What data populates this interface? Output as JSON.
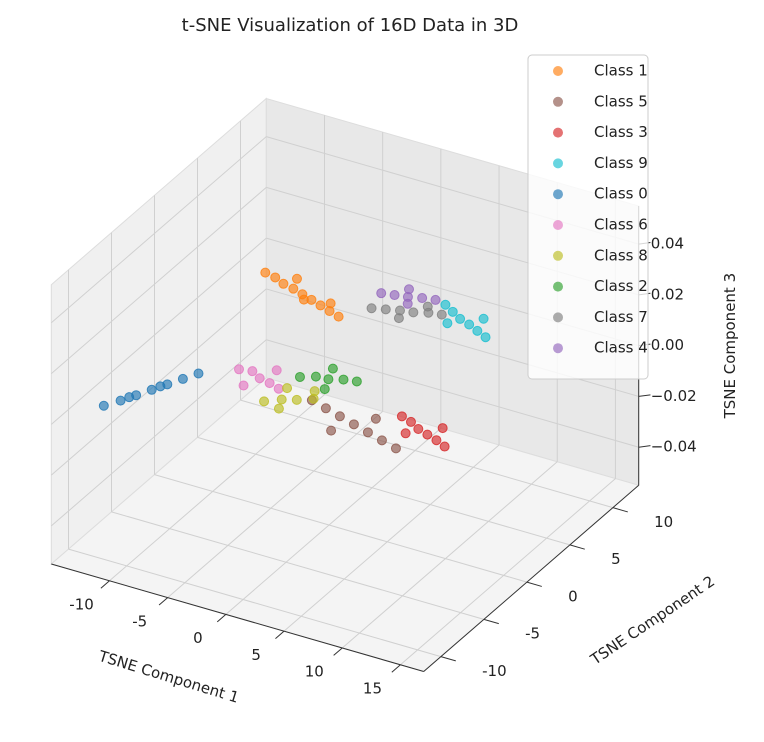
{
  "chart_data": {
    "type": "scatter3d",
    "title": "t-SNE Visualization of 16D Data in 3D",
    "x_label": "TSNE Component 1",
    "y_label": "TSNE Component 2",
    "z_label": "TSNE Component 3",
    "xlim": [
      -15,
      17
    ],
    "ylim": [
      -12,
      13
    ],
    "zlim": [
      -0.055,
      0.055
    ],
    "xticks": [
      -10,
      -5,
      0,
      5,
      10,
      15
    ],
    "yticks": [
      -10,
      -5,
      0,
      5,
      10
    ],
    "zticks": [
      {
        "value": -0.04,
        "label": "−0.04"
      },
      {
        "value": -0.02,
        "label": "−0.02"
      },
      {
        "value": 0,
        "label": "0.00"
      },
      {
        "value": 0.02,
        "label": "0.02"
      },
      {
        "value": 0.04,
        "label": "0.04"
      }
    ],
    "grid": true,
    "legend": "upper right",
    "series": [
      {
        "name": "Class 1",
        "color": "#ff7f0e",
        "x": [
          -12.5,
          -11.5,
          -10.5,
          -9.5,
          -8.5,
          -7.5,
          -6.5,
          -5.5,
          -4.5,
          -10,
          -8,
          -6
        ],
        "y": [
          9.5,
          9.3,
          8.9,
          8.7,
          8.4,
          8.1,
          7.8,
          7.5,
          7.2,
          9.8,
          7.9,
          8.3
        ],
        "z": [
          0,
          0,
          0,
          0,
          0,
          0,
          0,
          0,
          0,
          0,
          0,
          0
        ]
      },
      {
        "name": "Class 5",
        "color": "#8c564b",
        "x": [
          0,
          1.5,
          3,
          4.5,
          6,
          7.5,
          9,
          3.5,
          5.5
        ],
        "y": [
          -2,
          -2.4,
          -2.8,
          -3.2,
          -3.6,
          -4,
          -4.4,
          -4.5,
          -2
        ],
        "z": [
          0,
          0,
          0,
          0,
          0,
          0,
          0,
          0,
          0
        ]
      },
      {
        "name": "Class 3",
        "color": "#d62728",
        "x": [
          7,
          8,
          9,
          10,
          11,
          12,
          8.5,
          10.5
        ],
        "y": [
          -1,
          -1.3,
          -1.8,
          -2.1,
          -2.4,
          -2.8,
          -2.6,
          -1
        ],
        "z": [
          0,
          0,
          0,
          0,
          0,
          0,
          0,
          0
        ]
      },
      {
        "name": "Class 9",
        "color": "#17becf",
        "x": [
          1.5,
          2.5,
          3.5,
          4.5,
          5.5,
          6.5,
          3,
          5
        ],
        "y": [
          11.5,
          11,
          10.5,
          10.2,
          9.8,
          9.4,
          9.7,
          11.2
        ],
        "z": [
          0,
          0,
          0,
          0,
          0,
          0,
          0,
          0
        ]
      },
      {
        "name": "Class 0",
        "color": "#1f77b4",
        "x": [
          -13,
          -12.3,
          -11.7,
          -11.1,
          -10.5,
          -9.9,
          -9.3,
          -12,
          -10.8
        ],
        "y": [
          -8.6,
          -7.6,
          -6.6,
          -5.6,
          -4.6,
          -3.6,
          -2.6,
          -7,
          -5
        ],
        "z": [
          0,
          0,
          0,
          0,
          0,
          0,
          0,
          0,
          0
        ]
      },
      {
        "name": "Class 6",
        "color": "#e377c2",
        "x": [
          -7,
          -6,
          -5,
          -4,
          -3,
          -5.5,
          -4.5
        ],
        "y": [
          -1,
          -0.8,
          -1.3,
          -1.5,
          -1.8,
          -2.5,
          0
        ],
        "z": [
          0,
          0,
          0,
          0,
          0,
          0,
          0
        ]
      },
      {
        "name": "Class 8",
        "color": "#bcbd22",
        "x": [
          -3,
          -2,
          -1,
          0,
          -1.5,
          -2.5,
          -0.5
        ],
        "y": [
          -3.5,
          -2.8,
          -2.4,
          -1.8,
          -3.8,
          -1.5,
          -1
        ],
        "z": [
          0,
          0,
          0,
          0,
          0,
          0,
          0
        ]
      },
      {
        "name": "Class 2",
        "color": "#2ca02c",
        "x": [
          -2.5,
          -1.5,
          -0.5,
          0.5,
          1.5,
          -1,
          0
        ],
        "y": [
          0,
          0.5,
          0.6,
          1,
          1.2,
          1.8,
          -0.5
        ],
        "z": [
          0,
          0,
          0,
          0,
          0,
          0,
          0
        ]
      },
      {
        "name": "Class 7",
        "color": "#7f7f7f",
        "x": [
          -3,
          -2,
          -1,
          0,
          1,
          2,
          -0.5,
          0.5
        ],
        "y": [
          9,
          9.3,
          9.6,
          9.8,
          10.2,
          10.4,
          8.8,
          10.8
        ],
        "z": [
          0,
          0,
          0,
          0,
          0,
          0,
          0,
          0
        ]
      },
      {
        "name": "Class 4",
        "color": "#9467bd",
        "x": [
          -3.5,
          -2.5,
          -1.5,
          -0.5,
          0.5,
          -2,
          -1
        ],
        "y": [
          10.8,
          11,
          11.2,
          11.5,
          11.7,
          12,
          10.5
        ],
        "z": [
          0,
          0,
          0,
          0,
          0,
          0,
          0
        ]
      }
    ]
  }
}
